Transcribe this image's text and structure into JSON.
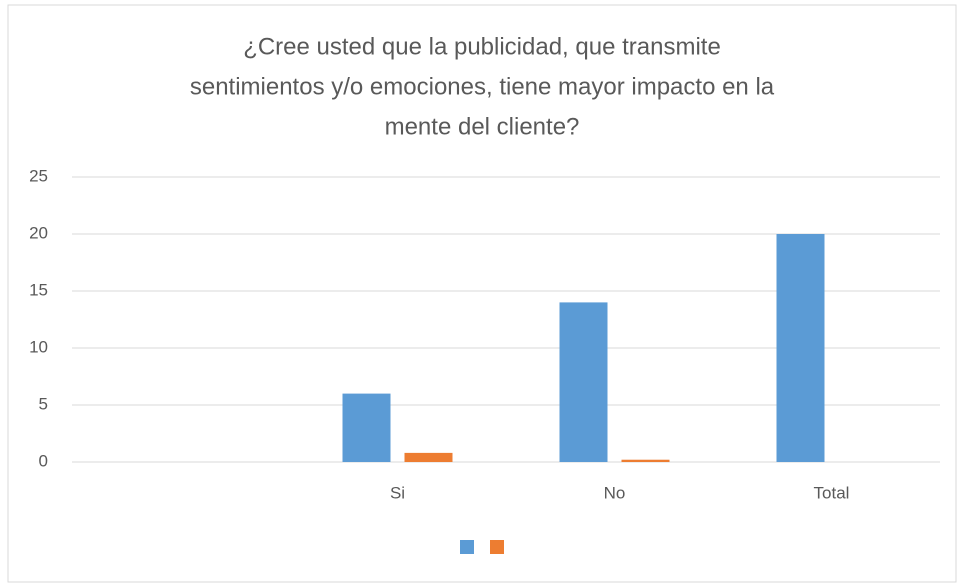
{
  "chart_data": {
    "type": "bar",
    "title": [
      "¿Cree usted que la publicidad, que transmite",
      "sentimientos y/o emociones, tiene mayor impacto en la",
      "mente del cliente?"
    ],
    "categories": [
      null,
      "Si",
      "No",
      "Total"
    ],
    "series": [
      {
        "color": "#5b9bd5",
        "values": [
          null,
          6,
          14,
          20
        ]
      },
      {
        "color": "#ed7d31",
        "values": [
          null,
          0.8,
          0.2,
          null
        ]
      }
    ],
    "ylim": [
      0,
      25
    ],
    "yticks": [
      0,
      5,
      10,
      15,
      20,
      25
    ],
    "grid": true,
    "legend": "bottom"
  }
}
